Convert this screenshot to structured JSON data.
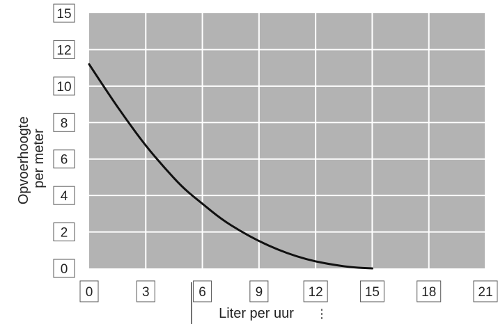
{
  "chart_data": {
    "type": "line",
    "title": "",
    "xlabel": "Liter per uur",
    "ylabel_lines": [
      "Opvoerhoogte",
      "per meter"
    ],
    "x_ticks": [
      0,
      3,
      6,
      9,
      12,
      15,
      18,
      21
    ],
    "y_ticks": [
      0,
      2,
      4,
      6,
      8,
      10,
      12,
      15
    ],
    "xlim": [
      0,
      21
    ],
    "ylim": [
      0,
      15
    ],
    "grid": true,
    "colors": {
      "plot_background": "#b3b3b3",
      "grid": "#ffffff",
      "line": "#111111",
      "tick_box": "#555555"
    },
    "series": [
      {
        "x": [
          0,
          1,
          2,
          3,
          4,
          5,
          6,
          7,
          8,
          9,
          10,
          11,
          12,
          13,
          14,
          15
        ],
        "y": [
          12.0,
          10.3,
          8.7,
          7.2,
          5.9,
          4.7,
          3.8,
          2.9,
          2.2,
          1.6,
          1.1,
          0.7,
          0.4,
          0.2,
          0.05,
          0
        ]
      }
    ]
  }
}
